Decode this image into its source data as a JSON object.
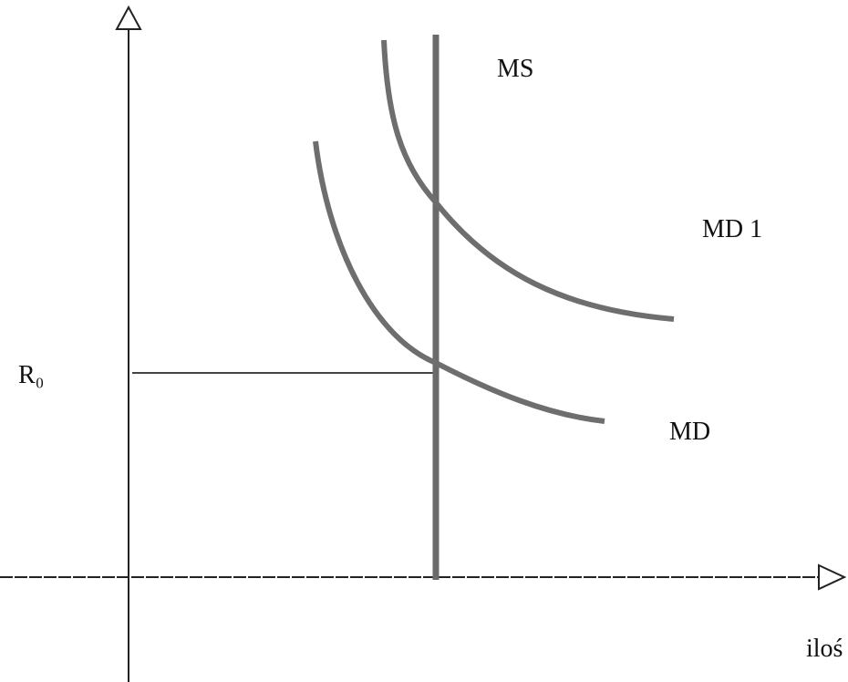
{
  "labels": {
    "ms": "MS",
    "md1": "MD 1",
    "r0": "R₀",
    "md": "MD",
    "x_axis": "iloś"
  }
}
